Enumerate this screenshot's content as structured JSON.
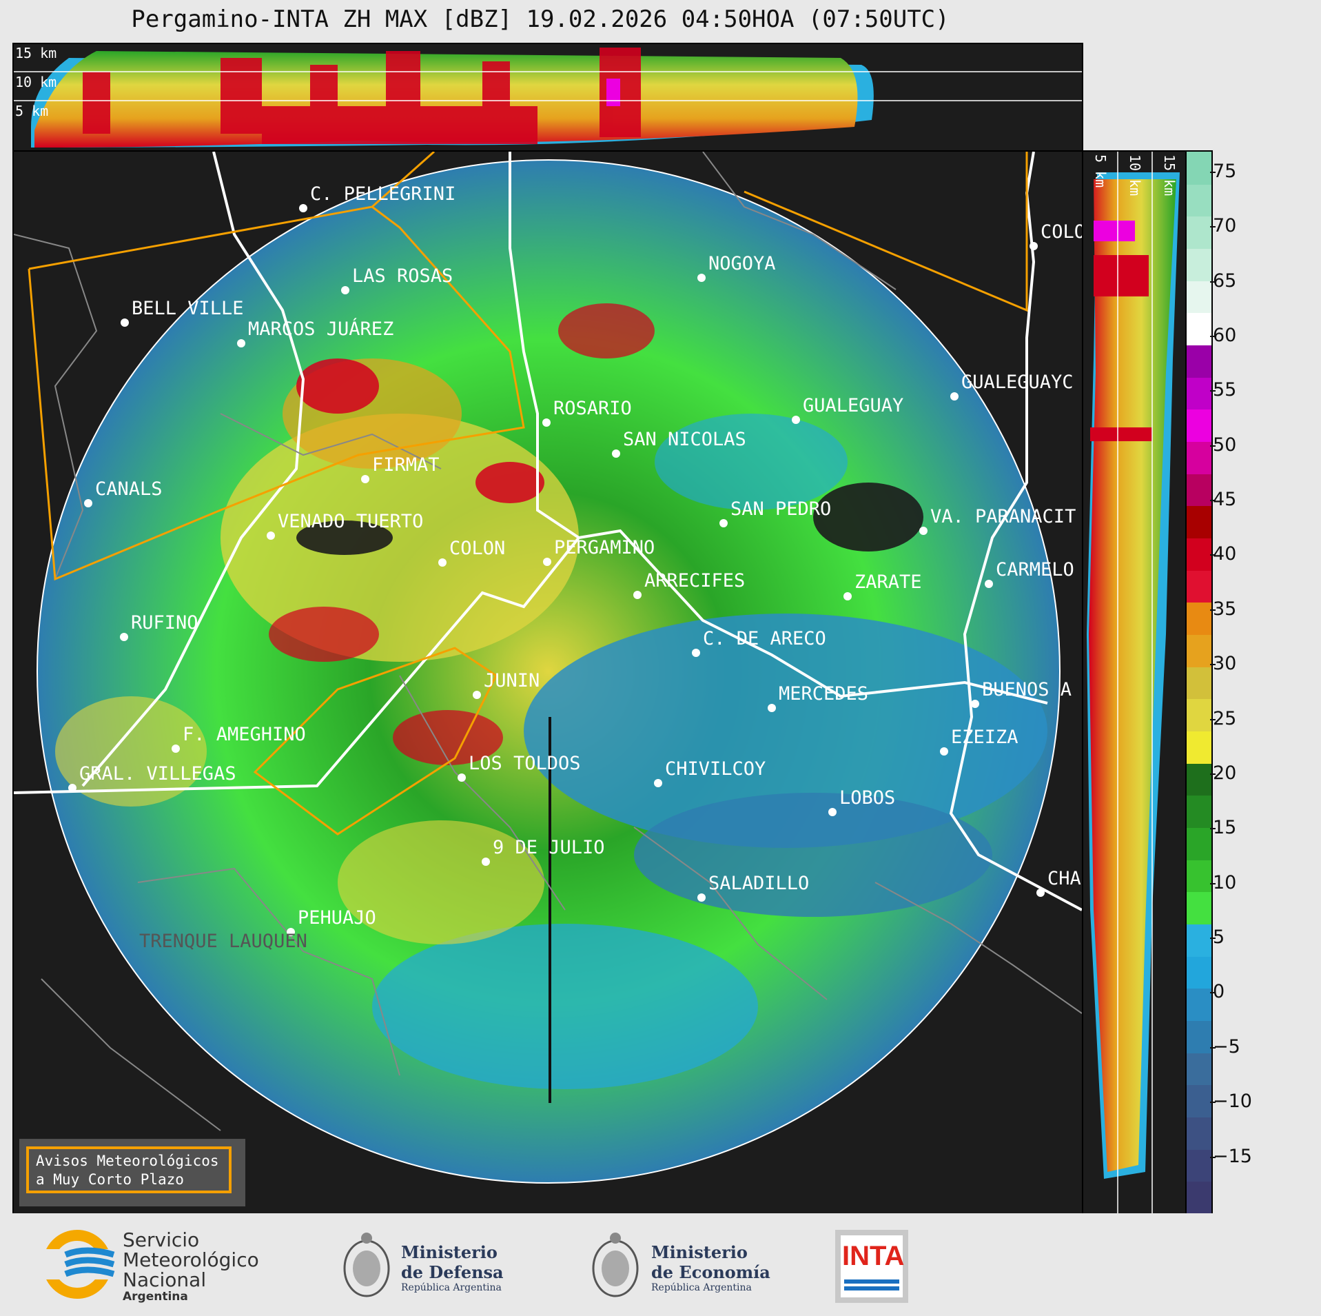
{
  "title": "Pergamino-INTA ZH MAX [dBZ] 19.02.2026 04:50HOA (07:50UTC)",
  "top_panel": {
    "height_labels": [
      "15 km",
      "10 km",
      "5 km"
    ]
  },
  "side_panel": {
    "height_labels": [
      "5 km",
      "10 km",
      "15 km"
    ]
  },
  "radar": "Pergamino-INTA",
  "product": "ZH MAX [dBZ]",
  "cities": [
    {
      "name": "C. PELLEGRINI"
    },
    {
      "name": "LAS ROSAS"
    },
    {
      "name": "BELL VILLE"
    },
    {
      "name": "MARCOS JUÁREZ"
    },
    {
      "name": "NOGOYA"
    },
    {
      "name": "ROSARIO"
    },
    {
      "name": "COLO"
    },
    {
      "name": "GUALEGUAYC"
    },
    {
      "name": "GUALEGUAY"
    },
    {
      "name": "SAN NICOLAS"
    },
    {
      "name": "FIRMAT"
    },
    {
      "name": "CANALS"
    },
    {
      "name": "VENADO TUERTO"
    },
    {
      "name": "SAN PEDRO"
    },
    {
      "name": "VA. PARANACIT"
    },
    {
      "name": "COLON"
    },
    {
      "name": "PERGAMINO"
    },
    {
      "name": "CARMELO"
    },
    {
      "name": "ARRECIFES"
    },
    {
      "name": "ZARATE"
    },
    {
      "name": "RUFINO"
    },
    {
      "name": "C. DE ARECO"
    },
    {
      "name": "JUNIN"
    },
    {
      "name": "MERCEDES"
    },
    {
      "name": "BUENOS A"
    },
    {
      "name": "F. AMEGHINO"
    },
    {
      "name": "EZEIZA"
    },
    {
      "name": "CHIVILCOY"
    },
    {
      "name": "GRAL. VILLEGAS"
    },
    {
      "name": "LOS TOLDOS"
    },
    {
      "name": "LOBOS"
    },
    {
      "name": "9 DE JULIO"
    },
    {
      "name": "CHA"
    },
    {
      "name": "SALADILLO"
    },
    {
      "name": "PEHUAJO"
    },
    {
      "name": "TRENQUE LAUQUEN"
    }
  ],
  "colorbar": {
    "ticks": [
      "75",
      "70",
      "65",
      "60",
      "55",
      "50",
      "45",
      "40",
      "35",
      "30",
      "25",
      "20",
      "15",
      "10",
      "5",
      "0",
      "−5",
      "−10",
      "−15"
    ],
    "colors": [
      "#3b3a6e",
      "#3c4478",
      "#3d5183",
      "#3b5f90",
      "#3a6d9c",
      "#2e7db0",
      "#2a8ec4",
      "#22a6dc",
      "#2ab0e0",
      "#44e040",
      "#37c22f",
      "#2aa528",
      "#248b23",
      "#1e6f1c",
      "#f0ea30",
      "#e0d640",
      "#d2c03a",
      "#e6a21e",
      "#e88a12",
      "#e01030",
      "#d2001e",
      "#a80000",
      "#b80060",
      "#d6009e",
      "#ec00e0",
      "#c000c8",
      "#9a00a8",
      "#ffffff",
      "#e6f6ee",
      "#c8eedc",
      "#aee6cc",
      "#98dec0",
      "#84d6b4"
    ],
    "min": -20,
    "max": 77
  },
  "warning_box": {
    "line1": "Avisos Meteorológicos",
    "line2": "a Muy Corto Plazo"
  },
  "footer": {
    "smn_line1": "Servicio",
    "smn_line2": "Meteorológico",
    "smn_line3": "Nacional",
    "smn_line4": "Argentina",
    "defensa_line1": "Ministerio",
    "defensa_line2": "de Defensa",
    "defensa_line3": "República Argentina",
    "economia_line1": "Ministerio",
    "economia_line2": "de Economía",
    "economia_line3": "República Argentina",
    "inta": "INTA"
  },
  "accent": {
    "warning": "#f5a000",
    "background": "#1c1c1c",
    "range_ring": "#ffffff"
  }
}
